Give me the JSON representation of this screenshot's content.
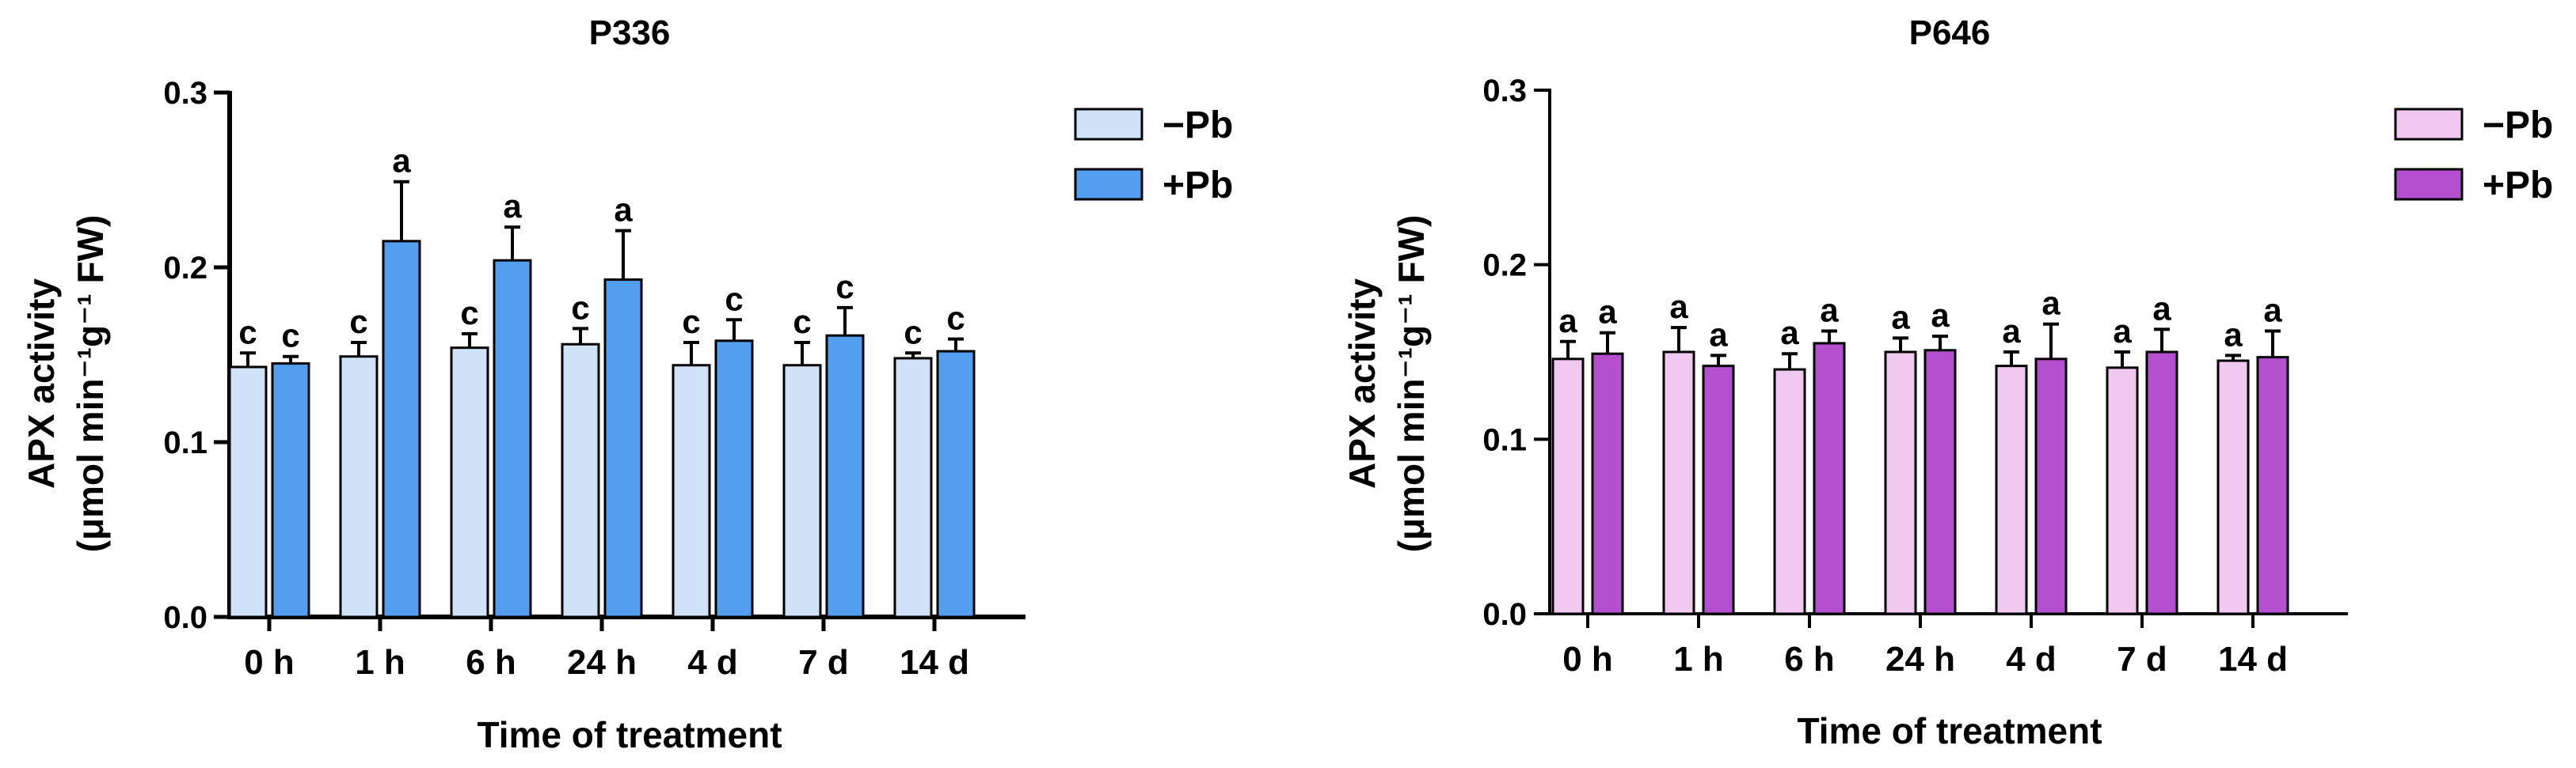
{
  "chart_data": [
    {
      "type": "bar",
      "title": "P336",
      "xlabel": "Time of treatment",
      "ylabel_line1": "APX activity",
      "ylabel_line2": "(μmol min⁻¹g⁻¹ FW)",
      "ylim": [
        0,
        0.3
      ],
      "yticks": [
        "0.0",
        "0.1",
        "0.2",
        "0.3"
      ],
      "categories": [
        "0 h",
        "1 h",
        "6 h",
        "24 h",
        "4 d",
        "7 d",
        "14 d"
      ],
      "legend_position": "top-right",
      "series": [
        {
          "name": "−Pb",
          "color": "#cfe2f8",
          "values": [
            0.143,
            0.149,
            0.154,
            0.156,
            0.144,
            0.144,
            0.148
          ],
          "errors": [
            0.008,
            0.008,
            0.008,
            0.009,
            0.013,
            0.013,
            0.003
          ],
          "letters": [
            "c",
            "c",
            "c",
            "c",
            "c",
            "c",
            "c"
          ]
        },
        {
          "name": "+Pb",
          "color": "#549ef0",
          "values": [
            0.145,
            0.215,
            0.204,
            0.193,
            0.158,
            0.161,
            0.152
          ],
          "errors": [
            0.004,
            0.034,
            0.019,
            0.028,
            0.012,
            0.016,
            0.007
          ],
          "letters": [
            "c",
            "a",
            "a",
            "a",
            "c",
            "c",
            "c"
          ]
        }
      ]
    },
    {
      "type": "bar",
      "title": "P646",
      "xlabel": "Time of treatment",
      "ylabel_line1": "APX activity",
      "ylabel_line2": "(μmol min⁻¹g⁻¹ FW)",
      "ylim": [
        0,
        0.3
      ],
      "yticks": [
        "0.0",
        "0.1",
        "0.2",
        "0.3"
      ],
      "categories": [
        "0 h",
        "1 h",
        "6 h",
        "24 h",
        "4 d",
        "7 d",
        "14 d"
      ],
      "legend_position": "top-right",
      "series": [
        {
          "name": "−Pb",
          "color": "#f0c8f0",
          "values": [
            0.146,
            0.15,
            0.14,
            0.15,
            0.142,
            0.141,
            0.145
          ],
          "errors": [
            0.01,
            0.014,
            0.009,
            0.008,
            0.008,
            0.009,
            0.003
          ],
          "letters": [
            "a",
            "a",
            "a",
            "a",
            "a",
            "a",
            "a"
          ]
        },
        {
          "name": "+Pb",
          "color": "#b44fd0",
          "values": [
            0.149,
            0.142,
            0.155,
            0.151,
            0.146,
            0.15,
            0.147
          ],
          "errors": [
            0.012,
            0.006,
            0.007,
            0.008,
            0.02,
            0.013,
            0.015
          ],
          "letters": [
            "a",
            "a",
            "a",
            "a",
            "a",
            "a",
            "a"
          ]
        }
      ]
    }
  ]
}
